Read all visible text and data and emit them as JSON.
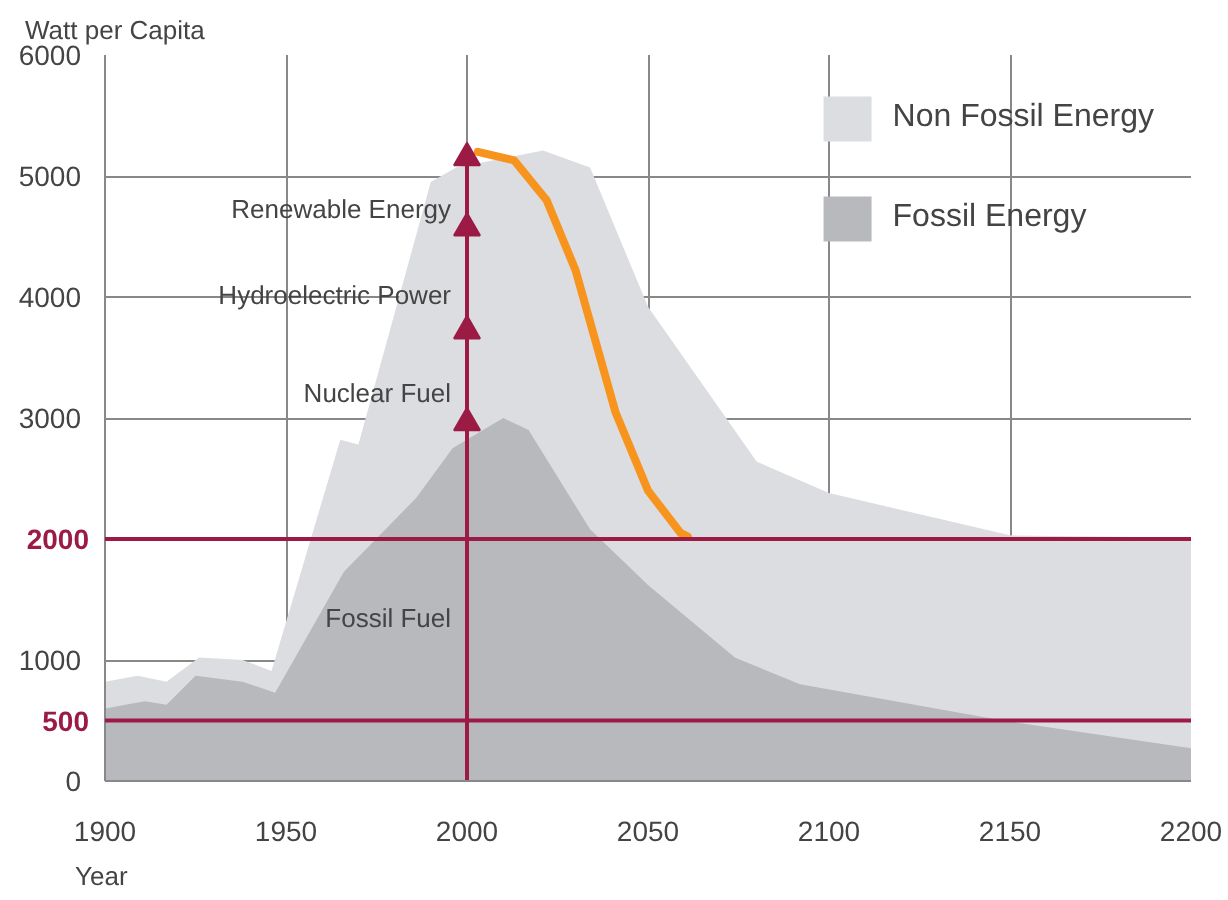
{
  "chart_data": {
    "type": "area",
    "xlabel": "Year",
    "ylabel": "Watt per Capita",
    "xlim": [
      1900,
      2200
    ],
    "ylim": [
      0,
      6000
    ],
    "xticks": [
      1900,
      1950,
      2000,
      2050,
      2100,
      2150,
      2200
    ],
    "yticks": [
      0,
      1000,
      3000,
      4000,
      5000,
      6000
    ],
    "grid": true,
    "legend": "top right",
    "series": [
      {
        "name": "Non Fossil Energy",
        "color": "#dcdde0",
        "x": [
          1900,
          1909,
          1917,
          1926,
          1938,
          1946,
          1965,
          1970,
          1990,
          1997,
          2021,
          2034,
          2050,
          2080,
          2100,
          2150,
          2200
        ],
        "values": [
          820,
          870,
          820,
          1020,
          1000,
          910,
          2820,
          2780,
          4950,
          5070,
          5210,
          5070,
          3920,
          2640,
          2380,
          2030,
          2010
        ]
      },
      {
        "name": "Fossil Energy",
        "color": "#b8b9bd",
        "x": [
          1900,
          1911,
          1917,
          1925,
          1938,
          1947,
          1966,
          1986,
          1996,
          2010,
          2017,
          2034,
          2050,
          2074,
          2092,
          2148,
          2200
        ],
        "values": [
          600,
          660,
          630,
          870,
          820,
          730,
          1730,
          2340,
          2750,
          3000,
          2900,
          2080,
          1620,
          1020,
          800,
          500,
          270
        ]
      },
      {
        "type": "line",
        "color": "#f7941d",
        "x": [
          2003,
          2013,
          2022,
          2030,
          2041,
          2050,
          2059,
          2061
        ],
        "values": [
          5200,
          5130,
          4800,
          4220,
          3050,
          2400,
          2050,
          2020
        ]
      },
      {
        "type": "line",
        "color": "#9b1b44",
        "marker": "triangle",
        "x": [
          2000,
          2000,
          2000,
          2000,
          2000
        ],
        "values": [
          0,
          2960,
          3720,
          4570,
          5150
        ]
      }
    ],
    "ref_lines": [
      {
        "axis": "y",
        "value": 2000,
        "label": "2000",
        "color": "#9b1b44"
      },
      {
        "axis": "y",
        "value": 500,
        "label": "500",
        "color": "#9b1b44"
      }
    ],
    "annotations": [
      "Renewable Energy",
      "Hydroelectric Power",
      "Nuclear Fuel",
      "Fossil Fuel"
    ]
  }
}
